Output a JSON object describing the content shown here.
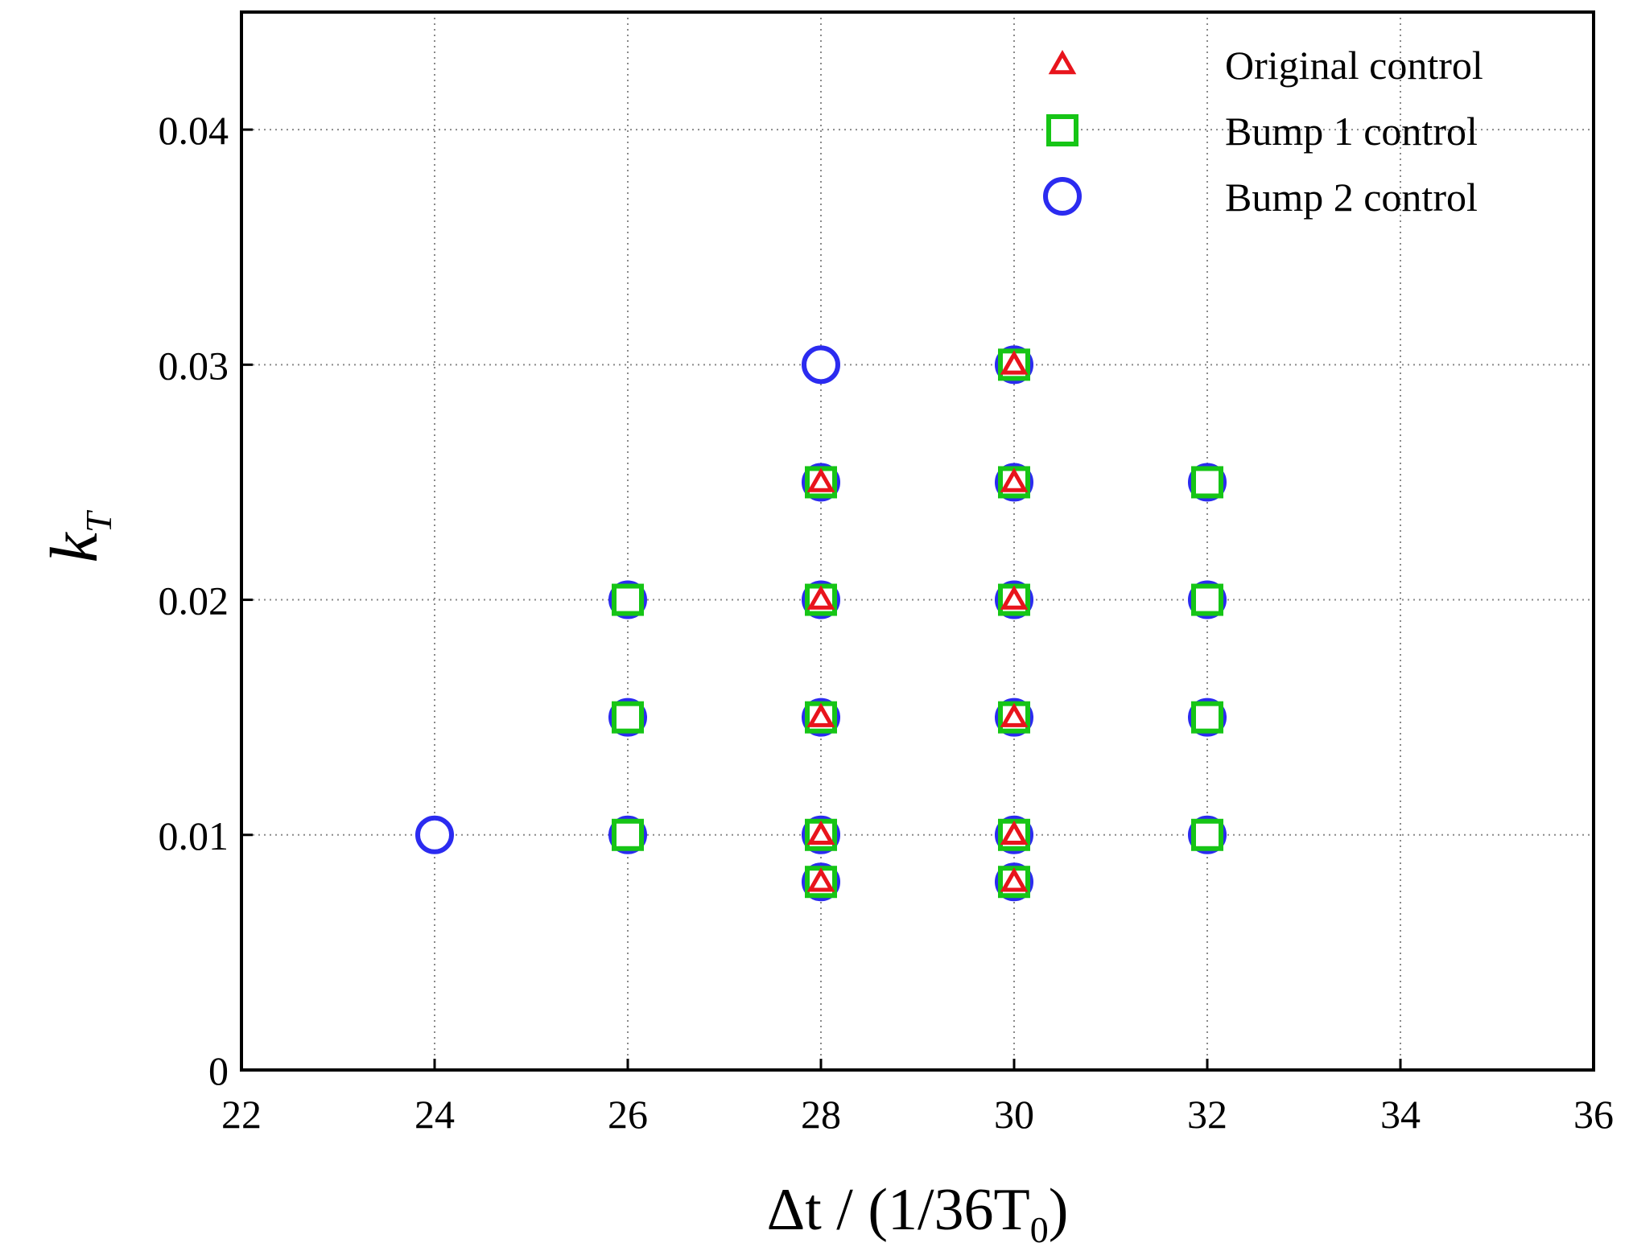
{
  "chart_data": {
    "type": "scatter",
    "title": "",
    "xlabel": {
      "prefix": "Δt / (1/36T",
      "sub": "0",
      "suffix": ")"
    },
    "ylabel": {
      "main": "k",
      "sub": "T"
    },
    "xlim": [
      22,
      36
    ],
    "ylim": [
      0,
      0.045
    ],
    "xticks": [
      22,
      24,
      26,
      28,
      30,
      32,
      34,
      36
    ],
    "xtick_labels": [
      "22",
      "24",
      "26",
      "28",
      "30",
      "32",
      "34",
      "36"
    ],
    "yticks": [
      0,
      0.01,
      0.02,
      0.03,
      0.04
    ],
    "ytick_labels": [
      "0",
      "0.01",
      "0.02",
      "0.03",
      "0.04"
    ],
    "grid": true,
    "legend_position": "top-right",
    "series": [
      {
        "name": "Original control",
        "marker": "triangle",
        "color": "#e8141c",
        "points": [
          [
            28,
            0.008
          ],
          [
            28,
            0.01
          ],
          [
            28,
            0.015
          ],
          [
            28,
            0.02
          ],
          [
            28,
            0.025
          ],
          [
            30,
            0.008
          ],
          [
            30,
            0.01
          ],
          [
            30,
            0.015
          ],
          [
            30,
            0.02
          ],
          [
            30,
            0.025
          ],
          [
            30,
            0.03
          ]
        ]
      },
      {
        "name": "Bump 1 control",
        "marker": "square",
        "color": "#16c516",
        "points": [
          [
            26,
            0.01
          ],
          [
            26,
            0.015
          ],
          [
            26,
            0.02
          ],
          [
            28,
            0.008
          ],
          [
            28,
            0.01
          ],
          [
            28,
            0.015
          ],
          [
            28,
            0.02
          ],
          [
            28,
            0.025
          ],
          [
            30,
            0.008
          ],
          [
            30,
            0.01
          ],
          [
            30,
            0.015
          ],
          [
            30,
            0.02
          ],
          [
            30,
            0.025
          ],
          [
            30,
            0.03
          ],
          [
            32,
            0.01
          ],
          [
            32,
            0.015
          ],
          [
            32,
            0.02
          ],
          [
            32,
            0.025
          ]
        ]
      },
      {
        "name": "Bump 2 control",
        "marker": "circle",
        "color": "#2b2bf0",
        "points": [
          [
            24,
            0.01
          ],
          [
            26,
            0.01
          ],
          [
            26,
            0.015
          ],
          [
            26,
            0.02
          ],
          [
            28,
            0.008
          ],
          [
            28,
            0.01
          ],
          [
            28,
            0.015
          ],
          [
            28,
            0.02
          ],
          [
            28,
            0.025
          ],
          [
            28,
            0.03
          ],
          [
            30,
            0.008
          ],
          [
            30,
            0.01
          ],
          [
            30,
            0.015
          ],
          [
            30,
            0.02
          ],
          [
            30,
            0.025
          ],
          [
            30,
            0.03
          ],
          [
            32,
            0.01
          ],
          [
            32,
            0.015
          ],
          [
            32,
            0.02
          ],
          [
            32,
            0.025
          ]
        ]
      }
    ]
  }
}
